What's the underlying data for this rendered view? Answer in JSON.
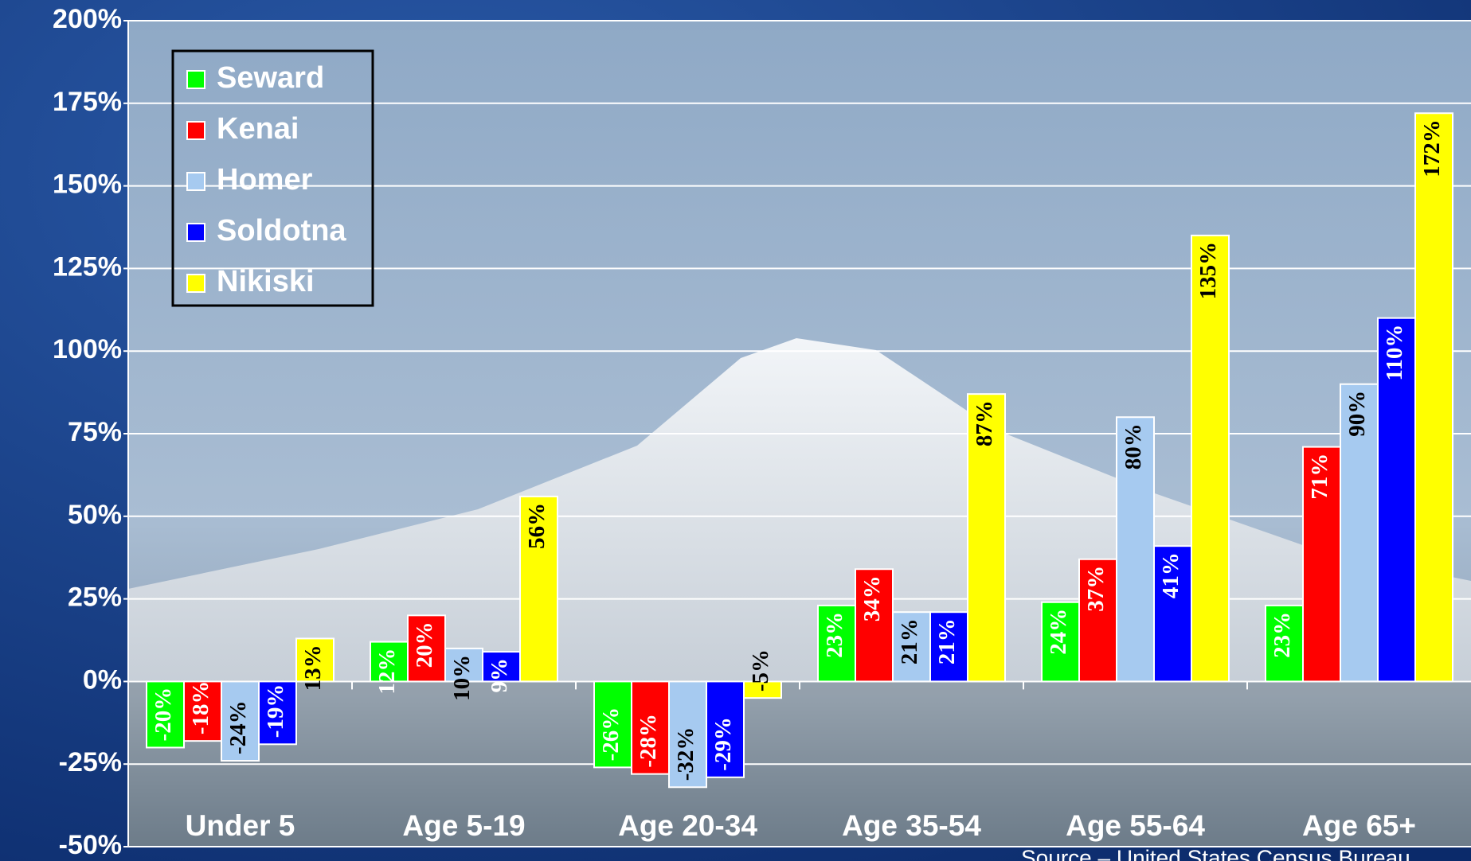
{
  "chart_data": {
    "type": "bar",
    "categories": [
      "Under 5",
      "Age 5-19",
      "Age 20-34",
      "Age 35-54",
      "Age 55-64",
      "Age 65+"
    ],
    "series": [
      {
        "name": "Seward",
        "color": "#00ff00",
        "values": [
          -20,
          12,
          -26,
          23,
          24,
          23
        ],
        "value_labels": [
          "-20%",
          "12%",
          "-26%",
          "23%",
          "24%",
          "23%"
        ]
      },
      {
        "name": "Kenai",
        "color": "#ff0000",
        "values": [
          -18,
          20,
          -28,
          34,
          37,
          71
        ],
        "value_labels": [
          "-18%",
          "20%",
          "-28%",
          "34%",
          "37%",
          "71%"
        ]
      },
      {
        "name": "Homer",
        "color": "#a6caf0",
        "values": [
          -24,
          10,
          -32,
          21,
          80,
          90
        ],
        "value_labels": [
          "-24%",
          "10%",
          "-32%",
          "21%",
          "80%",
          "90%"
        ]
      },
      {
        "name": "Soldotna",
        "color": "#0000ff",
        "values": [
          -19,
          9,
          -29,
          21,
          41,
          110
        ],
        "value_labels": [
          "-19%",
          "9%",
          "-29%",
          "21%",
          "41%",
          "110%"
        ]
      },
      {
        "name": "Nikiski",
        "color": "#ffff00",
        "values": [
          13,
          56,
          -5,
          87,
          135,
          172
        ],
        "value_labels": [
          "13%",
          "56%",
          "-5%",
          "87%",
          "135%",
          "172%"
        ]
      }
    ],
    "ylim": [
      -50,
      200
    ],
    "yticks": [
      {
        "value": -50,
        "label": "-50%"
      },
      {
        "value": -25,
        "label": "-25%"
      },
      {
        "value": 0,
        "label": "0%"
      },
      {
        "value": 25,
        "label": "25%"
      },
      {
        "value": 50,
        "label": "50%"
      },
      {
        "value": 75,
        "label": "75%"
      },
      {
        "value": 100,
        "label": "100%"
      },
      {
        "value": 125,
        "label": "125%"
      },
      {
        "value": 150,
        "label": "150%"
      },
      {
        "value": 175,
        "label": "175%"
      },
      {
        "value": 200,
        "label": "200%"
      }
    ],
    "grid": true,
    "legend": "upper left",
    "source": "Source – United States Census Bureau"
  }
}
